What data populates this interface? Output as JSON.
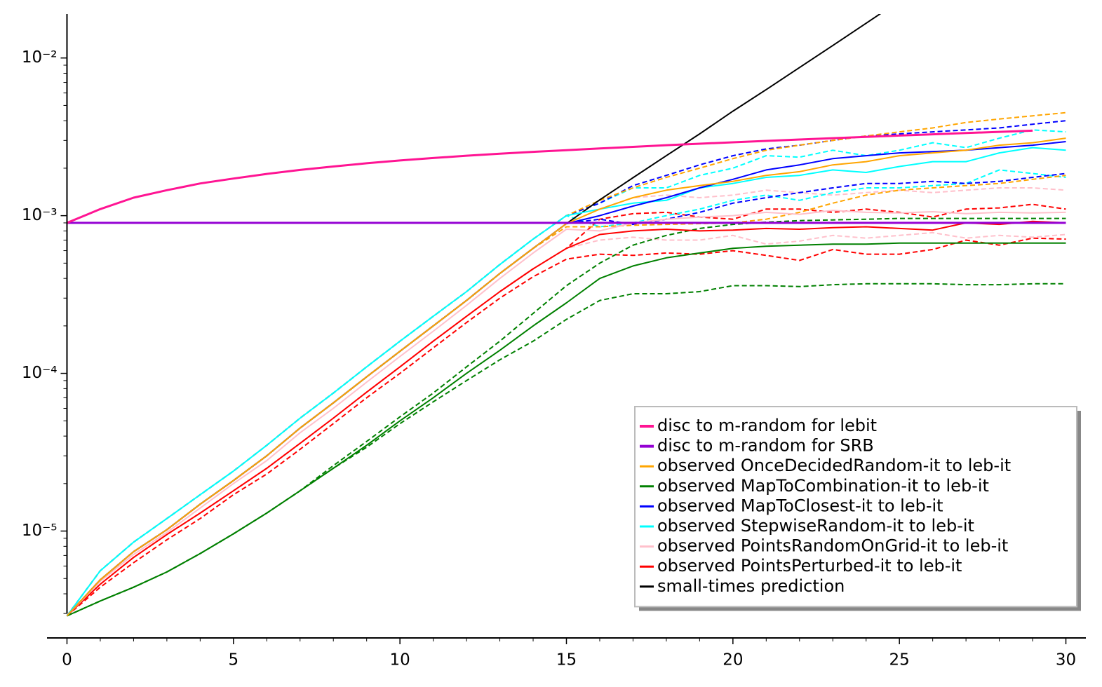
{
  "chart_data": {
    "type": "line",
    "log_y": true,
    "legend": "lower right",
    "x": [
      0,
      1,
      2,
      3,
      4,
      5,
      6,
      7,
      8,
      9,
      10,
      11,
      12,
      13,
      14,
      15,
      16,
      17,
      18,
      19,
      20,
      21,
      22,
      23,
      24,
      25,
      26,
      27,
      28,
      29,
      30
    ],
    "xlim": [
      -0.6,
      30.6
    ],
    "ylim": [
      2.1e-06,
      0.019
    ],
    "xticks": [
      0,
      5,
      10,
      15,
      20,
      25,
      30
    ],
    "xminorticks": [
      1,
      2,
      3,
      4,
      6,
      7,
      8,
      9,
      11,
      12,
      13,
      14,
      16,
      17,
      18,
      19,
      21,
      22,
      23,
      24,
      26,
      27,
      28,
      29
    ],
    "yticks": [
      {
        "value": 1e-05,
        "label": "10⁻⁵"
      },
      {
        "value": 0.0001,
        "label": "10⁻⁴"
      },
      {
        "value": 0.001,
        "label": "10⁻³"
      },
      {
        "value": 0.01,
        "label": "10⁻²"
      }
    ],
    "yminorticks": [
      3e-06,
      4e-06,
      5e-06,
      6e-06,
      7e-06,
      8e-06,
      9e-06,
      2e-05,
      3e-05,
      4e-05,
      5e-05,
      6e-05,
      7e-05,
      8e-05,
      9e-05,
      0.0002,
      0.0003,
      0.0004,
      0.0005,
      0.0006,
      0.0007,
      0.0008,
      0.0009,
      0.002,
      0.003,
      0.004,
      0.005,
      0.006,
      0.007,
      0.008,
      0.009
    ],
    "series": [
      {
        "name": "disc to m-random for lebit",
        "color": "#ff1493",
        "width": 3,
        "values": [
          0.0009,
          0.0011,
          0.0013,
          0.00145,
          0.0016,
          0.00172,
          0.00184,
          0.00195,
          0.00205,
          0.00215,
          0.00224,
          0.00232,
          0.0024,
          0.00247,
          0.00254,
          0.0026,
          0.00267,
          0.00273,
          0.0028,
          0.00286,
          0.00292,
          0.00298,
          0.00304,
          0.0031,
          0.00316,
          0.00322,
          0.00328,
          0.00334,
          0.0034,
          0.00346,
          null
        ]
      },
      {
        "name": "disc to m-random for SRB",
        "color": "#9400d3",
        "width": 3,
        "values": [
          0.0009,
          0.0009,
          0.0009,
          0.0009,
          0.0009,
          0.0009,
          0.0009,
          0.0009,
          0.0009,
          0.0009,
          0.0009,
          0.0009,
          0.0009,
          0.0009,
          0.0009,
          0.0009,
          0.0009,
          0.0009,
          0.0009,
          0.0009,
          0.0009,
          0.0009,
          0.0009,
          0.0009,
          0.0009,
          0.0009,
          0.0009,
          0.0009,
          0.0009,
          0.0009,
          0.0009
        ]
      },
      {
        "name": "observed OnceDecidedRandom-it to leb-it",
        "color": "#ffa500",
        "width": 2,
        "values": [
          2.9e-06,
          4.9e-06,
          7.4e-06,
          1.02e-05,
          1.48e-05,
          2.09e-05,
          3e-05,
          4.5e-05,
          6.5e-05,
          9.5e-05,
          0.000138,
          0.0002,
          0.00029,
          0.00043,
          0.00062,
          0.00089,
          0.0011,
          0.0013,
          0.00145,
          0.00155,
          0.00165,
          0.0018,
          0.0019,
          0.0021,
          0.0022,
          0.0024,
          0.0025,
          0.0026,
          0.0028,
          0.0029,
          0.0031
        ]
      },
      {
        "name": "observed MapToCombination-it to leb-it",
        "color": "#008000",
        "width": 2,
        "values": [
          2.9e-06,
          3.6e-06,
          4.4e-06,
          5.5e-06,
          7.2e-06,
          9.6e-06,
          1.3e-05,
          1.8e-05,
          2.5e-05,
          3.5e-05,
          5e-05,
          7e-05,
          0.0001,
          0.00014,
          0.0002,
          0.00028,
          0.0004,
          0.00048,
          0.00054,
          0.00058,
          0.00062,
          0.00064,
          0.00065,
          0.00066,
          0.00066,
          0.00067,
          0.00067,
          0.00067,
          0.00067,
          0.00067,
          0.00067
        ]
      },
      {
        "name": "observed MapToClosest-it to leb-it",
        "color": "#0000ff",
        "width": 2,
        "values": [
          2.9e-06,
          4.9e-06,
          7.4e-06,
          1.02e-05,
          1.48e-05,
          2.09e-05,
          3e-05,
          4.5e-05,
          6.5e-05,
          9.5e-05,
          0.000138,
          0.0002,
          0.00029,
          0.00043,
          0.00062,
          0.00089,
          0.001,
          0.00115,
          0.0013,
          0.0015,
          0.0017,
          0.00195,
          0.0021,
          0.0023,
          0.0024,
          0.0025,
          0.00255,
          0.0026,
          0.0027,
          0.0028,
          0.00295
        ]
      },
      {
        "name": "observed StepwiseRandom-it to leb-it",
        "color": "#00ffff",
        "width": 2,
        "values": [
          2.9e-06,
          5.6e-06,
          8.5e-06,
          1.2e-05,
          1.7e-05,
          2.4e-05,
          3.5e-05,
          5.2e-05,
          7.5e-05,
          0.00011,
          0.00016,
          0.00023,
          0.00033,
          0.00049,
          0.00071,
          0.001,
          0.0011,
          0.0012,
          0.00125,
          0.0015,
          0.0016,
          0.00175,
          0.0018,
          0.00195,
          0.00188,
          0.00205,
          0.0022,
          0.0022,
          0.0025,
          0.0027,
          0.0026
        ]
      },
      {
        "name": "observed PointsRandomOnGrid-it to leb-it",
        "color": "#ffc0cb",
        "width": 2,
        "values": [
          2.9e-06,
          4.8e-06,
          7.1e-06,
          9.8e-06,
          1.4e-05,
          2e-05,
          2.8e-05,
          4.2e-05,
          6e-05,
          8.8e-05,
          0.000128,
          0.000185,
          0.00027,
          0.0004,
          0.00058,
          0.00082,
          0.0008,
          0.0009,
          0.00095,
          0.00098,
          0.001,
          0.00105,
          0.00102,
          0.00108,
          0.00105,
          0.00104,
          0.00106,
          0.00103,
          0.00105,
          0.00104,
          0.00105
        ]
      },
      {
        "name": "observed PointsPerturbed-it to leb-it",
        "color": "#ff0000",
        "width": 2,
        "values": [
          2.9e-06,
          4.6e-06,
          6.8e-06,
          9.5e-06,
          1.3e-05,
          1.8e-05,
          2.5e-05,
          3.6e-05,
          5.2e-05,
          7.6e-05,
          0.00011,
          0.00016,
          0.00023,
          0.00033,
          0.00046,
          0.00062,
          0.00076,
          0.0008,
          0.00082,
          0.0008,
          0.00081,
          0.00083,
          0.00082,
          0.00084,
          0.00085,
          0.00083,
          0.00081,
          0.0009,
          0.00088,
          0.00092,
          0.0009
        ]
      },
      {
        "name": "small-times prediction",
        "color": "#000000",
        "width": 2,
        "values": [
          2.9e-06,
          4.9e-06,
          7.4e-06,
          1.02e-05,
          1.48e-05,
          2.09e-05,
          3e-05,
          4.5e-05,
          6.5e-05,
          9.5e-05,
          0.000138,
          0.0002,
          0.00029,
          0.00043,
          0.00062,
          0.00089,
          0.00126,
          0.00174,
          0.0024,
          0.0033,
          0.0046,
          0.0063,
          0.0087,
          0.012,
          0.0166,
          0.023,
          null,
          null,
          null,
          null,
          null
        ]
      },
      {
        "color": "#ffa500",
        "width": 2,
        "dash": true,
        "values": [
          2.9e-06,
          5.6e-06,
          8.5e-06,
          1.2e-05,
          1.7e-05,
          2.4e-05,
          3.5e-05,
          5.2e-05,
          7.5e-05,
          0.00011,
          0.00016,
          0.00023,
          0.00033,
          0.00049,
          0.00071,
          0.001,
          0.00125,
          0.0015,
          0.00175,
          0.002,
          0.0023,
          0.0026,
          0.0028,
          0.003,
          0.0032,
          0.0034,
          0.0036,
          0.0039,
          0.0041,
          0.0043,
          0.0045
        ]
      },
      {
        "color": "#ffa500",
        "width": 2,
        "dash": true,
        "values": [
          2.9e-06,
          4.9e-06,
          7.4e-06,
          1.02e-05,
          1.48e-05,
          2.09e-05,
          3e-05,
          4.5e-05,
          6.5e-05,
          9.5e-05,
          0.000138,
          0.0002,
          0.00029,
          0.00043,
          0.00062,
          0.00085,
          0.00085,
          0.00087,
          0.00088,
          0.00089,
          0.0009,
          0.00095,
          0.00105,
          0.0012,
          0.00135,
          0.00145,
          0.0015,
          0.00155,
          0.0016,
          0.0017,
          0.0018
        ]
      },
      {
        "color": "#008000",
        "width": 2,
        "dash": true,
        "values": [
          2.9e-06,
          3.6e-06,
          4.4e-06,
          5.5e-06,
          7.2e-06,
          9.6e-06,
          1.3e-05,
          1.8e-05,
          2.6e-05,
          3.7e-05,
          5.3e-05,
          7.5e-05,
          0.00011,
          0.00016,
          0.00024,
          0.00036,
          0.0005,
          0.00065,
          0.00075,
          0.00083,
          0.00088,
          0.00091,
          0.00093,
          0.00094,
          0.00095,
          0.00096,
          0.00096,
          0.00096,
          0.00096,
          0.00096,
          0.00096
        ]
      },
      {
        "color": "#008000",
        "width": 2,
        "dash": true,
        "values": [
          2.9e-06,
          3.6e-06,
          4.4e-06,
          5.5e-06,
          7.2e-06,
          9.6e-06,
          1.3e-05,
          1.8e-05,
          2.5e-05,
          3.4e-05,
          4.8e-05,
          6.6e-05,
          9e-05,
          0.000122,
          0.00016,
          0.00022,
          0.00029,
          0.00032,
          0.00032,
          0.00033,
          0.00036,
          0.00036,
          0.000355,
          0.000365,
          0.00037,
          0.00037,
          0.00037,
          0.000365,
          0.000365,
          0.00037,
          0.00037
        ]
      },
      {
        "color": "#0000ff",
        "width": 2,
        "dash": true,
        "values": [
          2.9e-06,
          5.6e-06,
          8.5e-06,
          1.2e-05,
          1.7e-05,
          2.4e-05,
          3.5e-05,
          5.2e-05,
          7.5e-05,
          0.00011,
          0.00016,
          0.00023,
          0.00033,
          0.00049,
          0.00071,
          0.001,
          0.0012,
          0.00155,
          0.0018,
          0.0021,
          0.0024,
          0.00265,
          0.0028,
          0.003,
          0.0032,
          0.0033,
          0.0034,
          0.0035,
          0.0036,
          0.0038,
          0.004
        ]
      },
      {
        "color": "#0000ff",
        "width": 2,
        "dash": true,
        "values": [
          2.9e-06,
          4.9e-06,
          7.4e-06,
          1.02e-05,
          1.48e-05,
          2.09e-05,
          3e-05,
          4.5e-05,
          6.5e-05,
          9.5e-05,
          0.000138,
          0.0002,
          0.00029,
          0.00043,
          0.00062,
          0.00089,
          0.00095,
          0.00088,
          0.00095,
          0.00105,
          0.0012,
          0.0013,
          0.0014,
          0.0015,
          0.0016,
          0.0016,
          0.00165,
          0.0016,
          0.00165,
          0.00175,
          0.00185
        ]
      },
      {
        "color": "#00ffff",
        "width": 2,
        "dash": true,
        "values": [
          2.9e-06,
          5.6e-06,
          8.5e-06,
          1.2e-05,
          1.7e-05,
          2.4e-05,
          3.5e-05,
          5.2e-05,
          7.5e-05,
          0.00011,
          0.00016,
          0.00023,
          0.00033,
          0.00049,
          0.00071,
          0.001,
          0.0012,
          0.0015,
          0.0015,
          0.0018,
          0.002,
          0.0024,
          0.00235,
          0.0026,
          0.0024,
          0.0026,
          0.0029,
          0.0027,
          0.0031,
          0.0035,
          0.0034
        ]
      },
      {
        "color": "#00ffff",
        "width": 2,
        "dash": true,
        "values": [
          2.9e-06,
          5.6e-06,
          8.5e-06,
          1.2e-05,
          1.7e-05,
          2.4e-05,
          3.5e-05,
          5.2e-05,
          7.5e-05,
          0.00011,
          0.00016,
          0.00023,
          0.00033,
          0.00049,
          0.00071,
          0.001,
          0.00085,
          0.0009,
          0.001,
          0.0011,
          0.00125,
          0.00135,
          0.00125,
          0.0014,
          0.0015,
          0.0015,
          0.00155,
          0.0016,
          0.00195,
          0.00185,
          0.00175
        ]
      },
      {
        "color": "#ffc0cb",
        "width": 2,
        "dash": true,
        "values": [
          2.9e-06,
          4.9e-06,
          7.4e-06,
          1.02e-05,
          1.48e-05,
          2.09e-05,
          3e-05,
          4.5e-05,
          6.5e-05,
          9.5e-05,
          0.000138,
          0.0002,
          0.00029,
          0.00043,
          0.00062,
          0.00089,
          0.0011,
          0.0013,
          0.00135,
          0.0013,
          0.00135,
          0.00145,
          0.0014,
          0.00135,
          0.0014,
          0.00145,
          0.0014,
          0.00145,
          0.0015,
          0.0015,
          0.00145
        ]
      },
      {
        "color": "#ffc0cb",
        "width": 2,
        "dash": true,
        "values": [
          2.9e-06,
          4.6e-06,
          6.8e-06,
          9.5e-06,
          1.3e-05,
          1.8e-05,
          2.5e-05,
          3.6e-05,
          5.2e-05,
          7.6e-05,
          0.00011,
          0.00016,
          0.00023,
          0.00033,
          0.00046,
          0.00062,
          0.0007,
          0.00073,
          0.0007,
          0.0007,
          0.00075,
          0.00066,
          0.00069,
          0.00075,
          0.00072,
          0.00075,
          0.00078,
          0.00072,
          0.00075,
          0.00073,
          0.00076
        ]
      },
      {
        "color": "#ff0000",
        "width": 2,
        "dash": true,
        "values": [
          2.9e-06,
          4.6e-06,
          6.8e-06,
          9.5e-06,
          1.3e-05,
          1.8e-05,
          2.5e-05,
          3.6e-05,
          5.2e-05,
          7.6e-05,
          0.00011,
          0.00016,
          0.00023,
          0.00033,
          0.00046,
          0.00062,
          0.00095,
          0.00103,
          0.00105,
          0.00098,
          0.00095,
          0.0011,
          0.0011,
          0.00105,
          0.0011,
          0.00105,
          0.00098,
          0.0011,
          0.00112,
          0.00118,
          0.0011
        ]
      },
      {
        "color": "#ff0000",
        "width": 2,
        "dash": true,
        "values": [
          2.9e-06,
          4.4e-06,
          6.3e-06,
          8.8e-06,
          1.2e-05,
          1.7e-05,
          2.3e-05,
          3.3e-05,
          4.8e-05,
          7e-05,
          0.0001,
          0.000145,
          0.00021,
          0.0003,
          0.00041,
          0.00053,
          0.00057,
          0.00056,
          0.00058,
          0.00057,
          0.0006,
          0.00056,
          0.00052,
          0.00061,
          0.00057,
          0.00057,
          0.00061,
          0.0007,
          0.00065,
          0.00072,
          0.00071
        ]
      }
    ]
  }
}
